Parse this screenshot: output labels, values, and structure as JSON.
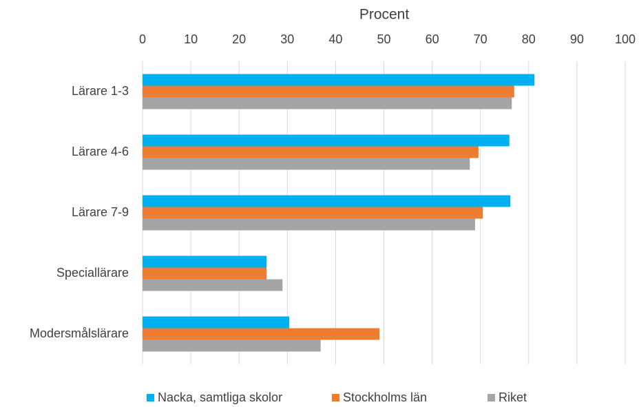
{
  "chart_data": {
    "type": "barh",
    "xlabel": "Procent",
    "categories": [
      "Lärare 1-3",
      "Lärare 4-6",
      "Lärare 7-9",
      "Speciallärare",
      "Modersmålslärare"
    ],
    "series": [
      {
        "name": "Nacka, samtliga skolor",
        "color": "#00b0f0",
        "values": [
          81.2,
          76.0,
          76.2,
          25.7,
          30.4
        ]
      },
      {
        "name": "Stockholms län",
        "color": "#ed7d31",
        "values": [
          77.0,
          69.6,
          70.5,
          25.7,
          49.1
        ]
      },
      {
        "name": "Riket",
        "color": "#a5a5a5",
        "values": [
          76.5,
          67.8,
          68.9,
          29.0,
          36.9
        ]
      }
    ],
    "xlim": [
      0,
      100
    ],
    "xticks": [
      0,
      10,
      20,
      30,
      40,
      50,
      60,
      70,
      80,
      90,
      100
    ],
    "grid": true,
    "legend": "bottom"
  }
}
